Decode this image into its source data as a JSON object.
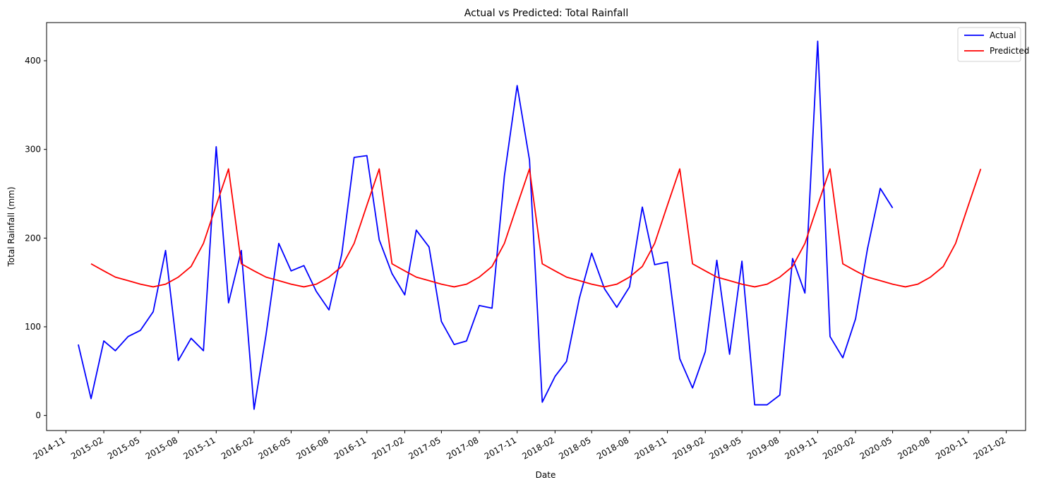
{
  "chart_data": {
    "type": "line",
    "title": "Actual vs Predicted: Total Rainfall",
    "xlabel": "Date",
    "ylabel": "Total Rainfall (mm)",
    "yticks": [
      0,
      100,
      200,
      300,
      400
    ],
    "ylim": [
      -17,
      443
    ],
    "xlim": [
      "2014-09-15",
      "2021-03-20"
    ],
    "xticks": [
      "2014-11",
      "2015-02",
      "2015-05",
      "2015-08",
      "2015-11",
      "2016-02",
      "2016-05",
      "2016-08",
      "2016-11",
      "2017-02",
      "2017-05",
      "2017-08",
      "2017-11",
      "2018-02",
      "2018-05",
      "2018-08",
      "2018-11",
      "2019-02",
      "2019-05",
      "2019-08",
      "2019-11",
      "2020-02",
      "2020-05",
      "2020-08",
      "2020-11",
      "2021-02"
    ],
    "grid": false,
    "legend_position": "top-right",
    "series": [
      {
        "name": "Actual",
        "color": "#0000ff",
        "start": "2014-12",
        "values": [
          80,
          19,
          84,
          73,
          89,
          96,
          117,
          186,
          62,
          87,
          73,
          303,
          127,
          186,
          7,
          91,
          194,
          163,
          169,
          140,
          119,
          182,
          291,
          293,
          198,
          160,
          136,
          209,
          190,
          106,
          80,
          84,
          124,
          121,
          270,
          372,
          288,
          15,
          44,
          61,
          132,
          183,
          143,
          122,
          145,
          235,
          170,
          173,
          64,
          31,
          72,
          175,
          69,
          174,
          12,
          12,
          23,
          177,
          138,
          422,
          89,
          65,
          109,
          188,
          256,
          234
        ]
      },
      {
        "name": "Predicted",
        "color": "#ff0000",
        "start": "2015-01",
        "values": [
          171,
          163,
          156,
          152,
          148,
          145,
          148,
          156,
          168,
          194,
          237,
          278,
          171,
          163,
          156,
          152,
          148,
          145,
          148,
          156,
          168,
          194,
          237,
          278,
          171,
          163,
          156,
          152,
          148,
          145,
          148,
          156,
          168,
          194,
          237,
          278,
          171,
          163,
          156,
          152,
          148,
          145,
          148,
          156,
          168,
          194,
          237,
          278,
          171,
          163,
          156,
          152,
          148,
          145,
          148,
          156,
          168,
          194,
          237,
          278,
          171,
          163,
          156,
          152,
          148,
          145,
          148,
          156,
          168,
          194,
          237,
          278
        ]
      }
    ]
  }
}
